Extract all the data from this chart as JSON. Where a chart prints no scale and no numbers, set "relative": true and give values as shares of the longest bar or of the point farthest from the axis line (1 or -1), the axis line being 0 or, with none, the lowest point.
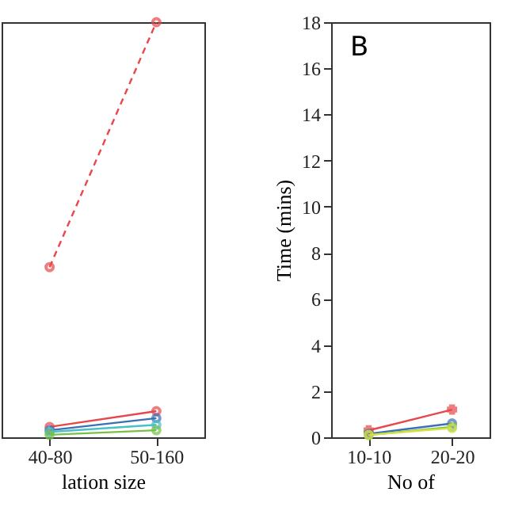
{
  "chart_data": [
    {
      "type": "line",
      "relative": true,
      "xlabel": "lation size",
      "categories": [
        "40-80",
        "50-160"
      ],
      "grid": false,
      "series": [
        {
          "color": "#e8474b",
          "line_style": "dashed",
          "marker": "circle",
          "values": [
            0.41,
            1
          ]
        },
        {
          "color": "#e8474b",
          "line_style": "solid",
          "marker": "circle",
          "values": [
            0.025,
            0.063
          ]
        },
        {
          "color": "#3c6fb4",
          "line_style": "solid",
          "marker": "circle",
          "values": [
            0.017,
            0.046
          ]
        },
        {
          "color": "#4ac0c8",
          "line_style": "solid",
          "marker": "circle",
          "values": [
            0.013,
            0.03
          ]
        },
        {
          "color": "#7ac143",
          "line_style": "solid",
          "marker": "circle",
          "values": [
            0.006,
            0.017
          ]
        }
      ]
    },
    {
      "type": "line",
      "xlabel": "No of",
      "ylabel": "Time (mins)",
      "annotations": [
        "B"
      ],
      "categories": [
        "10-10",
        "20-20"
      ],
      "ylim": [
        0,
        18
      ],
      "yticks": [
        0,
        2,
        4,
        6,
        8,
        10,
        12,
        14,
        16,
        18
      ],
      "grid": false,
      "series": [
        {
          "color": "#e8474b",
          "line_style": "solid",
          "marker": "cross",
          "values": [
            0.3,
            1.2
          ]
        },
        {
          "color": "#3c6fb4",
          "line_style": "solid",
          "marker": "circle",
          "values": [
            0.15,
            0.6
          ]
        },
        {
          "color": "#7ac143",
          "line_style": "solid",
          "marker": "circle",
          "values": [
            0.1,
            0.45
          ]
        },
        {
          "color": "#d6e04a",
          "line_style": "solid",
          "marker": "circle",
          "values": [
            0.1,
            0.4
          ]
        }
      ]
    }
  ]
}
